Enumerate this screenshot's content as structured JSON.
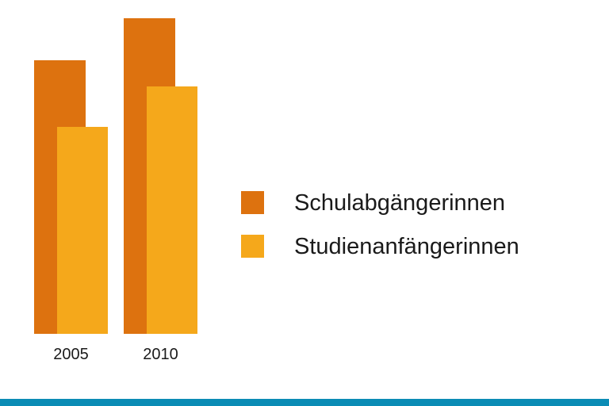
{
  "chart_data": {
    "type": "bar",
    "categories": [
      "2005",
      "2010"
    ],
    "series": [
      {
        "name": "Schulabgängerinnen",
        "values": [
          345,
          398
        ],
        "color": "#dd720f"
      },
      {
        "name": "Studienanfängerinnen",
        "values": [
          261,
          312
        ],
        "color": "#f5a81b"
      }
    ],
    "ylim": [
      0,
      400
    ],
    "grid": false,
    "legend_position": "right",
    "style": "overlapping"
  },
  "colors": {
    "footer": "#0b8cb5",
    "background": "#ffffff"
  }
}
